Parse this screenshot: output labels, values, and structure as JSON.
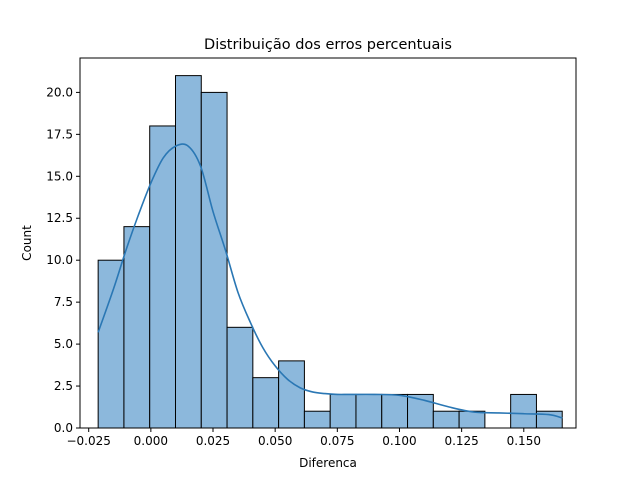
{
  "chart_data": {
    "type": "bar",
    "title": "Distribuição dos erros percentuais",
    "xlabel": "Diferenca",
    "ylabel": "Count",
    "xlim": [
      -0.0285,
      0.171
    ],
    "ylim": [
      0,
      22.05
    ],
    "grid": false,
    "bin_edges": [
      -0.0212,
      -0.01083,
      -0.00046,
      0.00991,
      0.02028,
      0.03065,
      0.04102,
      0.05139,
      0.06176,
      0.07213,
      0.0825,
      0.09287,
      0.10324,
      0.11361,
      0.12398,
      0.13435,
      0.14472,
      0.15509,
      0.16546
    ],
    "counts": [
      10,
      12,
      18,
      21,
      20,
      6,
      3,
      4,
      1,
      2,
      2,
      2,
      2,
      1,
      1,
      0,
      2,
      1
    ],
    "kde": {
      "x": [
        -0.0212,
        -0.015,
        -0.01,
        -0.005,
        0.0,
        0.005,
        0.01,
        0.015,
        0.02,
        0.025,
        0.03,
        0.035,
        0.04,
        0.045,
        0.05,
        0.055,
        0.06,
        0.065,
        0.07,
        0.075,
        0.08,
        0.09,
        0.1,
        0.11,
        0.12,
        0.13,
        0.14,
        0.15,
        0.16,
        0.1655
      ],
      "y": [
        5.7,
        8.3,
        10.6,
        12.7,
        14.6,
        16.1,
        16.8,
        16.8,
        15.6,
        12.9,
        10.6,
        8.1,
        6.3,
        4.8,
        3.7,
        2.9,
        2.4,
        2.15,
        2.05,
        2.0,
        2.0,
        2.0,
        1.95,
        1.65,
        1.25,
        0.95,
        0.9,
        0.85,
        0.8,
        0.6
      ]
    },
    "x_ticks": [
      -0.025,
      0.0,
      0.025,
      0.05,
      0.075,
      0.1,
      0.125,
      0.15
    ],
    "x_tick_labels": [
      "−0.025",
      "0.000",
      "0.025",
      "0.050",
      "0.075",
      "0.100",
      "0.125",
      "0.150"
    ],
    "y_ticks": [
      0,
      2.5,
      5,
      7.5,
      10,
      12.5,
      15,
      17.5,
      20
    ],
    "y_tick_labels": [
      "0.0",
      "2.5",
      "5.0",
      "7.5",
      "10.0",
      "12.5",
      "15.0",
      "17.5",
      "20.0"
    ],
    "colors": {
      "bar_fill": "#8cb8dc",
      "bar_edge": "#000000",
      "kde_line": "#2a77b4",
      "axes": "#000000"
    }
  }
}
